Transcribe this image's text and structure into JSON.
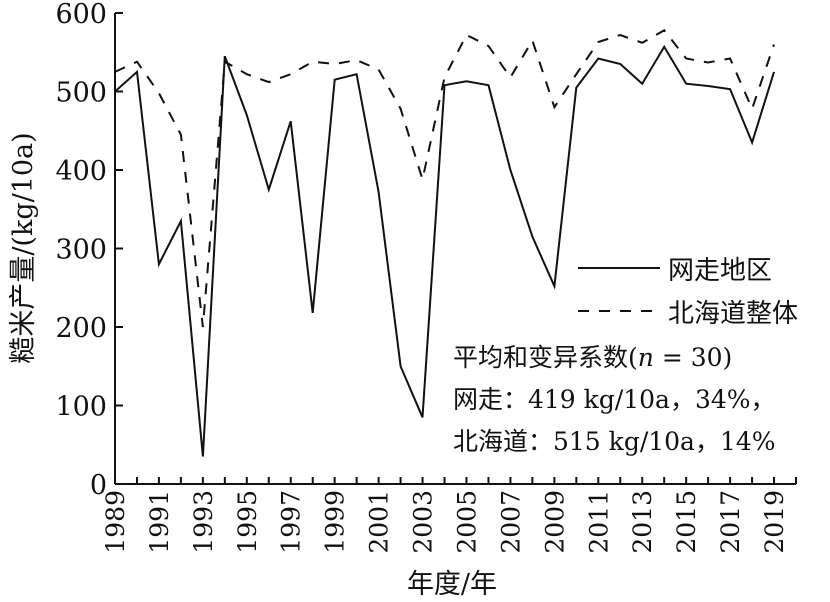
{
  "chart_data": {
    "type": "line",
    "xlabel": "年度/年",
    "ylabel": "糙米产量/(kg/10a)",
    "xlim": [
      1989,
      2020
    ],
    "ylim": [
      0,
      600
    ],
    "x_ticks": [
      1989,
      1990,
      1991,
      1992,
      1993,
      1994,
      1995,
      1996,
      1997,
      1998,
      1999,
      2000,
      2001,
      2002,
      2003,
      2004,
      2005,
      2006,
      2007,
      2008,
      2009,
      2010,
      2011,
      2012,
      2013,
      2014,
      2015,
      2016,
      2017,
      2018,
      2019,
      2020
    ],
    "x_tick_labels": [
      "1989",
      "1991",
      "1993",
      "1995",
      "1997",
      "1999",
      "2001",
      "2003",
      "2005",
      "2007",
      "2009",
      "2011",
      "2013",
      "2015",
      "2017",
      "2019"
    ],
    "y_ticks": [
      0,
      100,
      200,
      300,
      400,
      500,
      600
    ],
    "x": [
      1989,
      1990,
      1991,
      1992,
      1993,
      1994,
      1995,
      1996,
      1997,
      1998,
      1999,
      2000,
      2001,
      2002,
      2003,
      2004,
      2005,
      2006,
      2007,
      2008,
      2009,
      2010,
      2011,
      2012,
      2013,
      2014,
      2015,
      2016,
      2017,
      2018,
      2019
    ],
    "series": [
      {
        "name": "网走地区",
        "style": "solid",
        "values": [
          500,
          525,
          280,
          335,
          35,
          545,
          470,
          375,
          462,
          218,
          515,
          522,
          372,
          150,
          85,
          508,
          513,
          508,
          400,
          315,
          252,
          505,
          542,
          535,
          510,
          557,
          510,
          507,
          503,
          435,
          525
        ]
      },
      {
        "name": "北海道整体",
        "style": "dashed",
        "values": [
          525,
          538,
          498,
          445,
          200,
          538,
          522,
          512,
          522,
          538,
          535,
          540,
          528,
          478,
          388,
          518,
          572,
          558,
          518,
          565,
          480,
          522,
          563,
          572,
          562,
          578,
          542,
          537,
          542,
          478,
          560
        ]
      }
    ],
    "legend_position": "right-middle",
    "annotation": {
      "line1": "平均和变异系数(",
      "line1_italic": "n",
      "line1_end": " = 30)",
      "line2": "网走：419 kg/10a，34%，",
      "line3": "北海道：515 kg/10a，14%"
    },
    "grid": false
  }
}
